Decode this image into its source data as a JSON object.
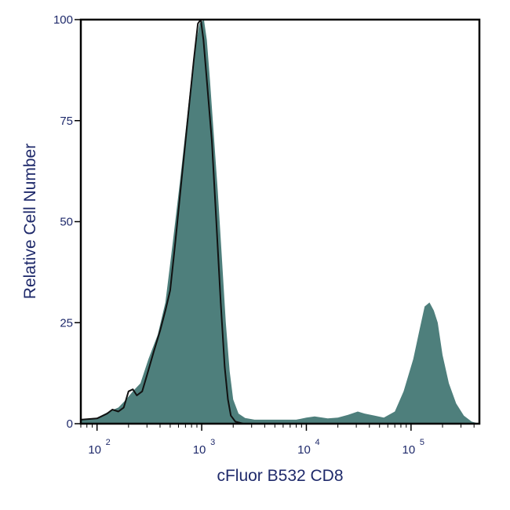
{
  "chart_data": {
    "type": "area",
    "xlabel": "cFluor B532 CD8",
    "ylabel": "Relative Cell Number",
    "x_scale": "log",
    "xlim": [
      70,
      450000
    ],
    "ylim": [
      0,
      100
    ],
    "y_ticks": [
      0,
      25,
      50,
      75,
      100
    ],
    "y_tick_labels": [
      "0",
      "25",
      "50",
      "75",
      "100"
    ],
    "x_decades": [
      {
        "value": 100,
        "base": "10",
        "exp": "2"
      },
      {
        "value": 1000,
        "base": "10",
        "exp": "3"
      },
      {
        "value": 10000,
        "base": "10",
        "exp": "4"
      },
      {
        "value": 100000,
        "base": "10",
        "exp": "5"
      }
    ],
    "grid": false,
    "series": [
      {
        "style": "filled",
        "color": "#4e7f7c",
        "points": [
          [
            70,
            1
          ],
          [
            100,
            1.5
          ],
          [
            130,
            3
          ],
          [
            160,
            4
          ],
          [
            190,
            6
          ],
          [
            220,
            8
          ],
          [
            260,
            10
          ],
          [
            310,
            16
          ],
          [
            380,
            22
          ],
          [
            450,
            30
          ],
          [
            530,
            45
          ],
          [
            620,
            60
          ],
          [
            720,
            75
          ],
          [
            830,
            90
          ],
          [
            950,
            99
          ],
          [
            1050,
            100
          ],
          [
            1120,
            95
          ],
          [
            1200,
            85
          ],
          [
            1300,
            72
          ],
          [
            1420,
            58
          ],
          [
            1550,
            42
          ],
          [
            1700,
            25
          ],
          [
            1850,
            13
          ],
          [
            2000,
            6
          ],
          [
            2250,
            2.5
          ],
          [
            2600,
            1.4
          ],
          [
            3200,
            1
          ],
          [
            5000,
            1
          ],
          [
            8000,
            1
          ],
          [
            10000,
            1.5
          ],
          [
            12000,
            1.8
          ],
          [
            16000,
            1.3
          ],
          [
            20000,
            1.5
          ],
          [
            25000,
            2.2
          ],
          [
            31000,
            3
          ],
          [
            36000,
            2.5
          ],
          [
            45000,
            2
          ],
          [
            55000,
            1.5
          ],
          [
            70000,
            3
          ],
          [
            85000,
            8
          ],
          [
            105000,
            16
          ],
          [
            120000,
            23
          ],
          [
            135000,
            29
          ],
          [
            150000,
            30
          ],
          [
            165000,
            28
          ],
          [
            180000,
            25
          ],
          [
            200000,
            17
          ],
          [
            230000,
            10
          ],
          [
            270000,
            5
          ],
          [
            320000,
            2
          ],
          [
            380000,
            0.5
          ],
          [
            450000,
            0
          ]
        ]
      },
      {
        "style": "outline",
        "color": "#111111",
        "points": [
          [
            70,
            1
          ],
          [
            100,
            1.3
          ],
          [
            125,
            2.5
          ],
          [
            140,
            3.5
          ],
          [
            160,
            3
          ],
          [
            180,
            4
          ],
          [
            200,
            8
          ],
          [
            220,
            8.5
          ],
          [
            240,
            7
          ],
          [
            270,
            8
          ],
          [
            300,
            12
          ],
          [
            350,
            18
          ],
          [
            400,
            23
          ],
          [
            450,
            28
          ],
          [
            500,
            33
          ],
          [
            560,
            45
          ],
          [
            640,
            60
          ],
          [
            740,
            76
          ],
          [
            840,
            90
          ],
          [
            920,
            99
          ],
          [
            980,
            100
          ],
          [
            1040,
            95
          ],
          [
            1120,
            85
          ],
          [
            1250,
            70
          ],
          [
            1380,
            50
          ],
          [
            1520,
            30
          ],
          [
            1660,
            14
          ],
          [
            1780,
            6
          ],
          [
            1900,
            2
          ],
          [
            2100,
            0.5
          ],
          [
            2500,
            0
          ]
        ]
      }
    ]
  }
}
